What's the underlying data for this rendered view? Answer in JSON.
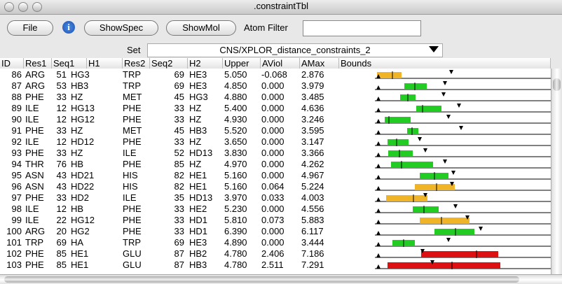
{
  "window": {
    "title": ".constraintTbl"
  },
  "toolbar": {
    "buttons": [
      "File",
      "ShowSpec",
      "ShowMol"
    ],
    "filter_label": "Atom Filter"
  },
  "set": {
    "label": "Set",
    "value": "CNS/XPLOR_distance_constraints_2"
  },
  "table": {
    "columns": [
      "ID",
      "Res1",
      "Seq1",
      "H1",
      "Res2",
      "Seq2",
      "H2",
      "Upper",
      "AViol",
      "AMax",
      "Bounds"
    ],
    "rows": [
      [
        "86",
        "ARG",
        "51",
        "HG3",
        "TRP",
        "69",
        "HE3",
        "5.050",
        "-0.068",
        "2.876"
      ],
      [
        "87",
        "ARG",
        "53",
        "HB3",
        "TRP",
        "69",
        "HE3",
        "4.850",
        "0.000",
        "3.979"
      ],
      [
        "88",
        "PHE",
        "33",
        "HZ",
        "MET",
        "45",
        "HG3",
        "4.880",
        "0.000",
        "3.485"
      ],
      [
        "89",
        "ILE",
        "12",
        "HG13",
        "PHE",
        "33",
        "HZ",
        "5.400",
        "0.000",
        "4.636"
      ],
      [
        "90",
        "ILE",
        "12",
        "HG12",
        "PHE",
        "33",
        "HZ",
        "4.930",
        "0.000",
        "3.246"
      ],
      [
        "91",
        "PHE",
        "33",
        "HZ",
        "MET",
        "45",
        "HB3",
        "5.520",
        "0.000",
        "3.595"
      ],
      [
        "92",
        "ILE",
        "12",
        "HD12",
        "PHE",
        "33",
        "HZ",
        "3.650",
        "0.000",
        "3.147"
      ],
      [
        "93",
        "PHE",
        "33",
        "HZ",
        "ILE",
        "52",
        "HD13",
        "3.830",
        "0.000",
        "3.366"
      ],
      [
        "94",
        "THR",
        "76",
        "HB",
        "PHE",
        "85",
        "HZ",
        "4.970",
        "0.000",
        "4.262"
      ],
      [
        "95",
        "ASN",
        "43",
        "HD21",
        "HIS",
        "82",
        "HE1",
        "5.160",
        "0.000",
        "4.967"
      ],
      [
        "96",
        "ASN",
        "43",
        "HD22",
        "HIS",
        "82",
        "HE1",
        "5.160",
        "0.064",
        "5.224"
      ],
      [
        "97",
        "PHE",
        "33",
        "HD2",
        "ILE",
        "35",
        "HD13",
        "3.970",
        "0.033",
        "4.003"
      ],
      [
        "98",
        "ILE",
        "12",
        "HB",
        "PHE",
        "33",
        "HE2",
        "5.230",
        "0.000",
        "4.556"
      ],
      [
        "99",
        "ILE",
        "22",
        "HG12",
        "PHE",
        "33",
        "HD1",
        "5.810",
        "0.073",
        "5.883"
      ],
      [
        "100",
        "ARG",
        "20",
        "HG2",
        "PHE",
        "33",
        "HD1",
        "6.390",
        "0.000",
        "6.117"
      ],
      [
        "101",
        "TRP",
        "69",
        "HA",
        "TRP",
        "69",
        "HE3",
        "4.890",
        "0.000",
        "3.444"
      ],
      [
        "102",
        "PHE",
        "85",
        "HE1",
        "GLU",
        "87",
        "HB2",
        "4.780",
        "2.406",
        "7.186"
      ],
      [
        "103",
        "PHE",
        "85",
        "HE1",
        "GLU",
        "87",
        "HB3",
        "4.780",
        "2.511",
        "7.291"
      ]
    ]
  }
}
